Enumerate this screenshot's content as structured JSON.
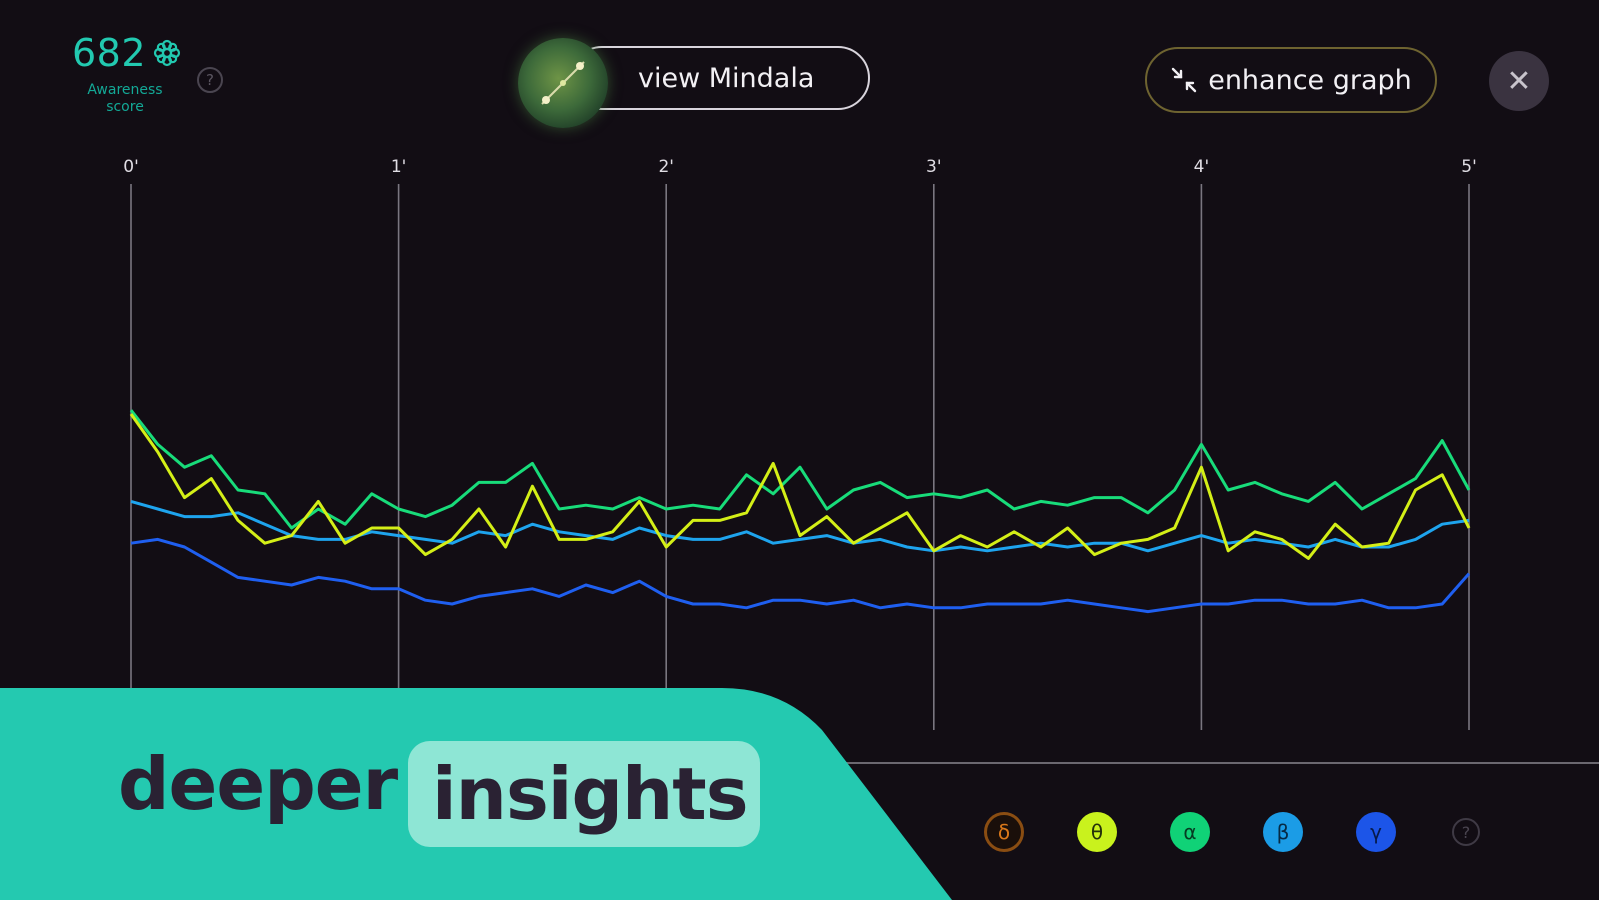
{
  "score": {
    "value": "682",
    "label": "Awareness score",
    "icon": "flower-icon",
    "help": "?"
  },
  "toolbar": {
    "mindala_label": "view Mindala",
    "enhance_label": "enhance graph",
    "close_label": "✕"
  },
  "colors": {
    "theta": "#d4ef17",
    "alpha": "#18dc7a",
    "beta": "#1ea4ee",
    "gamma": "#1f5ff0",
    "delta": "#d9781a",
    "accent": "#24c9b0"
  },
  "chart_data": {
    "type": "line",
    "x": [
      0,
      0.1,
      0.2,
      0.3,
      0.4,
      0.5,
      0.6,
      0.7,
      0.8,
      0.9,
      1,
      1.1,
      1.2,
      1.3,
      1.4,
      1.5,
      1.6,
      1.7,
      1.8,
      1.9,
      2,
      2.1,
      2.2,
      2.3,
      2.4,
      2.5,
      2.6,
      2.7,
      2.8,
      2.9,
      3,
      3.1,
      3.2,
      3.3,
      3.4,
      3.5,
      3.6,
      3.7,
      3.8,
      3.9,
      4,
      4.1,
      4.2,
      4.3,
      4.4,
      4.5,
      4.6,
      4.7,
      4.8,
      4.9,
      5
    ],
    "x_tick_labels": [
      "0'",
      "1'",
      "2'",
      "3'",
      "4'",
      "5'"
    ],
    "xlim": [
      0,
      5
    ],
    "ylim": [
      0,
      100
    ],
    "grid": "vertical",
    "series": [
      {
        "name": "θ",
        "color": "#d4ef17",
        "values": [
          70,
          60,
          48,
          53,
          42,
          36,
          38,
          47,
          36,
          40,
          40,
          33,
          37,
          45,
          35,
          51,
          37,
          37,
          39,
          47,
          35,
          42,
          42,
          44,
          57,
          38,
          43,
          36,
          40,
          44,
          34,
          38,
          35,
          39,
          35,
          40,
          33,
          36,
          37,
          40,
          56,
          34,
          39,
          37,
          32,
          41,
          35,
          36,
          50,
          54,
          40
        ]
      },
      {
        "name": "α",
        "color": "#18dc7a",
        "values": [
          71,
          62,
          56,
          59,
          50,
          49,
          40,
          45,
          41,
          49,
          45,
          43,
          46,
          52,
          52,
          57,
          45,
          46,
          45,
          48,
          45,
          46,
          45,
          54,
          49,
          56,
          45,
          50,
          52,
          48,
          49,
          48,
          50,
          45,
          47,
          46,
          48,
          48,
          44,
          50,
          62,
          50,
          52,
          49,
          47,
          52,
          45,
          49,
          53,
          63,
          50
        ]
      },
      {
        "name": "β",
        "color": "#1ea4ee",
        "values": [
          47,
          45,
          43,
          43,
          44,
          41,
          38,
          37,
          37,
          39,
          38,
          37,
          36,
          39,
          38,
          41,
          39,
          38,
          37,
          40,
          38,
          37,
          37,
          39,
          36,
          37,
          38,
          36,
          37,
          35,
          34,
          35,
          34,
          35,
          36,
          35,
          36,
          36,
          34,
          36,
          38,
          36,
          37,
          36,
          35,
          37,
          35,
          35,
          37,
          41,
          42
        ]
      },
      {
        "name": "γ",
        "color": "#1f5ff0",
        "values": [
          36,
          37,
          35,
          31,
          27,
          26,
          25,
          27,
          26,
          24,
          24,
          21,
          20,
          22,
          23,
          24,
          22,
          25,
          23,
          26,
          22,
          20,
          20,
          19,
          21,
          21,
          20,
          21,
          19,
          20,
          19,
          19,
          20,
          20,
          20,
          21,
          20,
          19,
          18,
          19,
          20,
          20,
          21,
          21,
          20,
          20,
          21,
          19,
          19,
          20,
          28
        ]
      }
    ]
  },
  "banner": {
    "word1": "deeper",
    "word2": "insights"
  },
  "bands": [
    {
      "key": "delta",
      "symbol": "δ",
      "icon": "delta-band-icon"
    },
    {
      "key": "theta",
      "symbol": "θ",
      "icon": "theta-band-icon"
    },
    {
      "key": "alpha",
      "symbol": "α",
      "icon": "alpha-band-icon"
    },
    {
      "key": "beta",
      "symbol": "β",
      "icon": "beta-band-icon"
    },
    {
      "key": "gamma",
      "symbol": "γ",
      "icon": "gamma-band-icon"
    }
  ],
  "help_bottom": "?"
}
